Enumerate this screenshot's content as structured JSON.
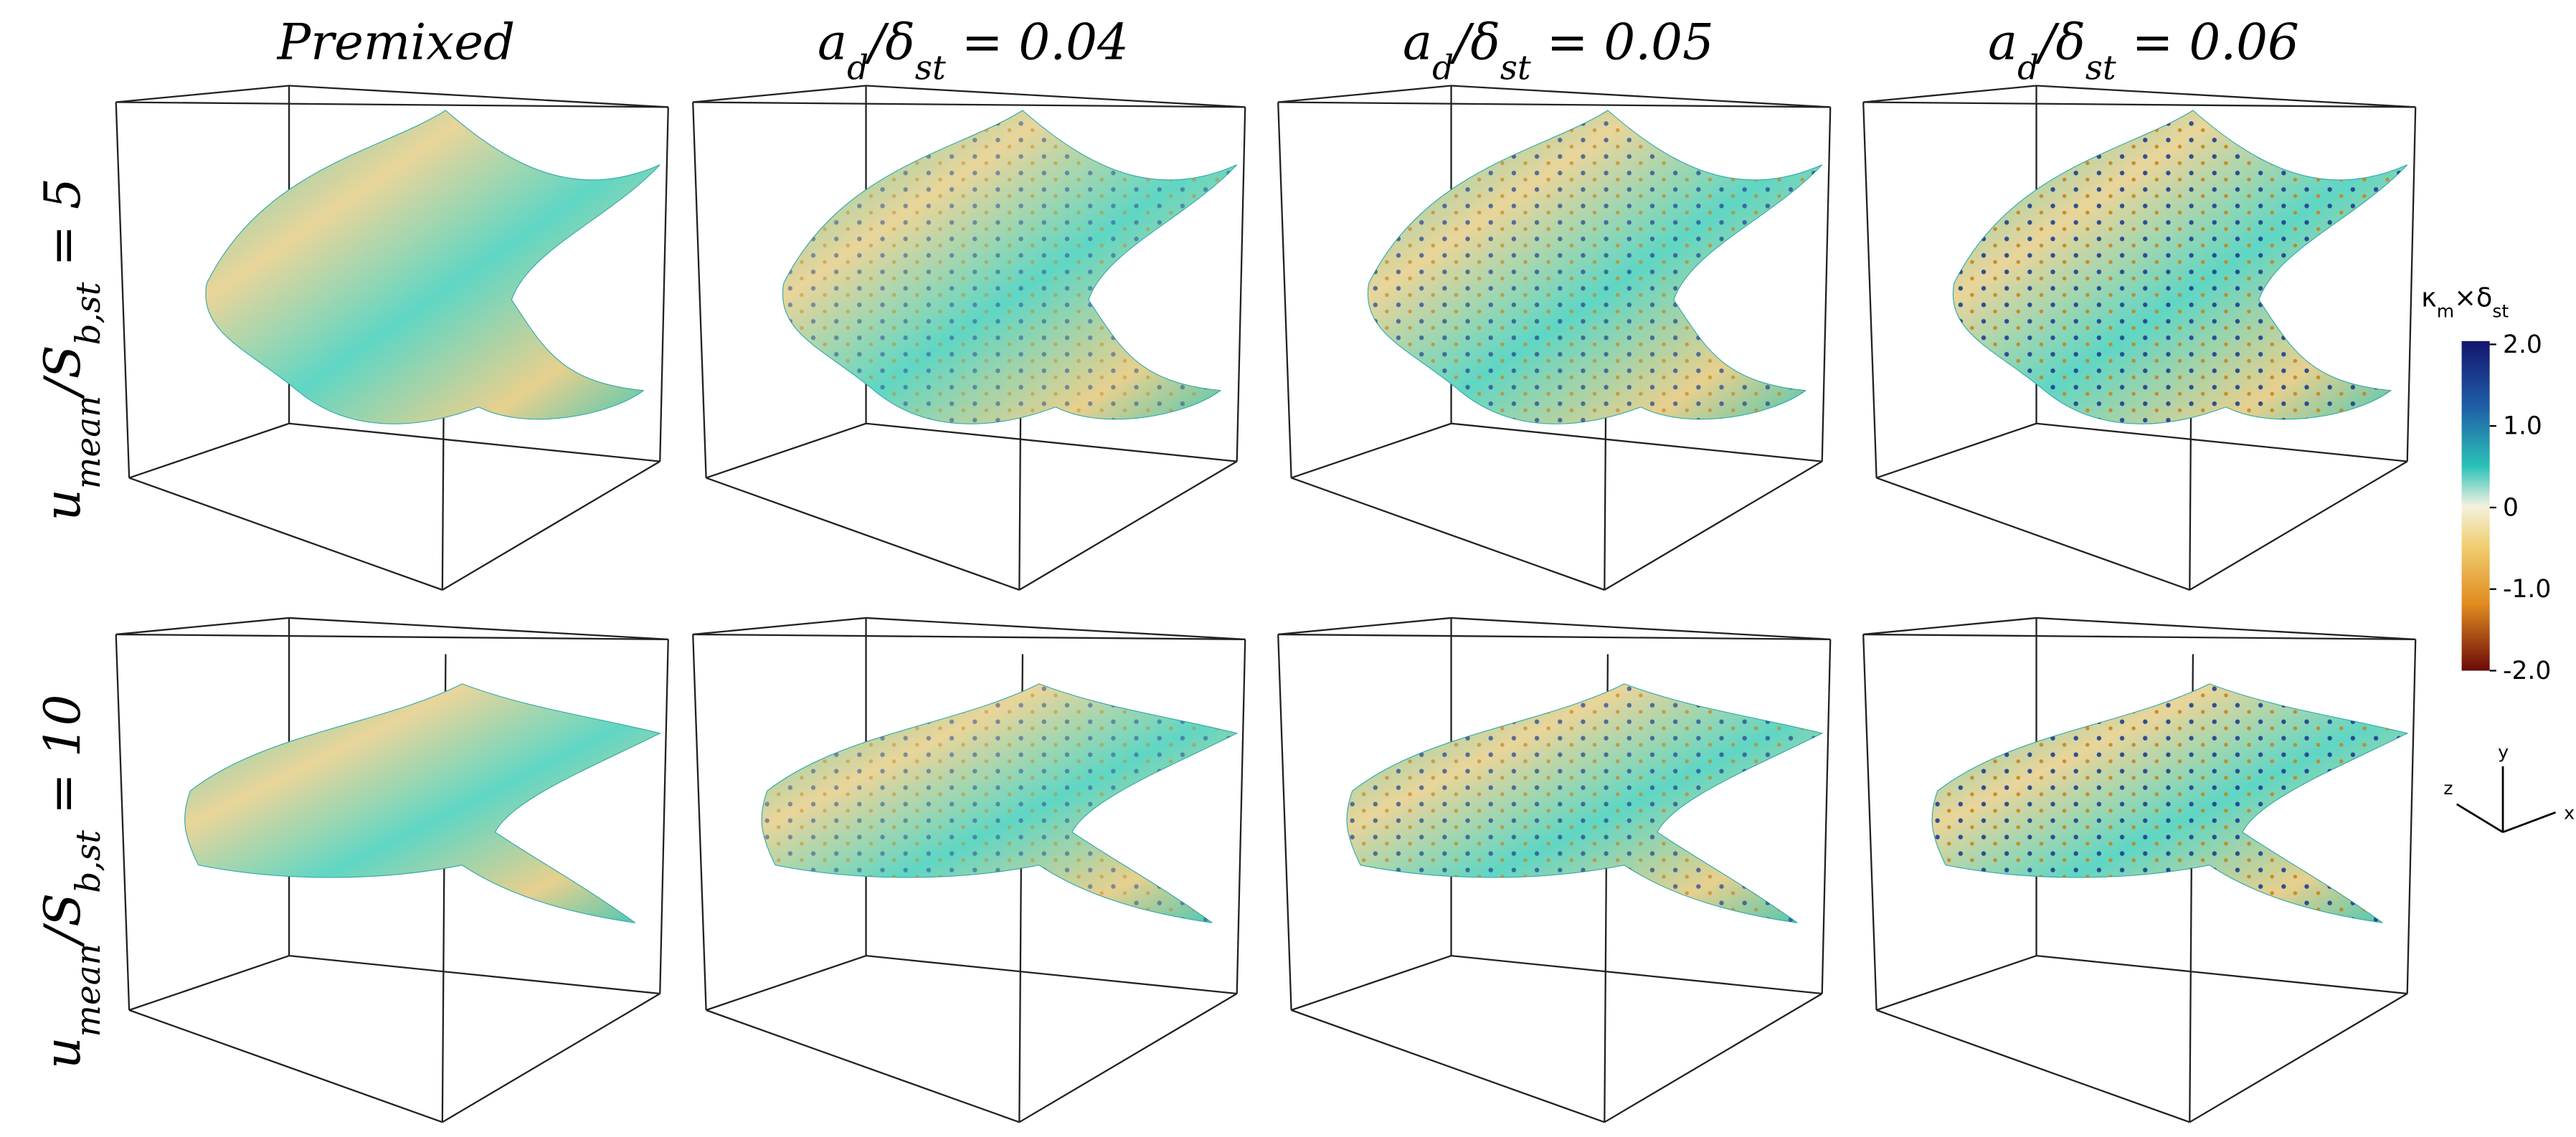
{
  "column_titles": [
    [
      {
        "text": "Premixed"
      }
    ],
    [
      {
        "text": "a"
      },
      {
        "sub": "d"
      },
      {
        "text": "/δ"
      },
      {
        "sub": "st"
      },
      {
        "text": " = 0.04"
      }
    ],
    [
      {
        "text": "a"
      },
      {
        "sub": "d"
      },
      {
        "text": "/δ"
      },
      {
        "sub": "st"
      },
      {
        "text": " = 0.05"
      }
    ],
    [
      {
        "text": "a"
      },
      {
        "sub": "d"
      },
      {
        "text": "/δ"
      },
      {
        "sub": "st"
      },
      {
        "text": " = 0.06"
      }
    ]
  ],
  "row_labels": [
    [
      {
        "text": "u"
      },
      {
        "sub": "mean"
      },
      {
        "text": "/S"
      },
      {
        "sub": "b,st"
      },
      {
        "text": " = 5"
      }
    ],
    [
      {
        "text": "u"
      },
      {
        "sub": "mean"
      },
      {
        "text": "/S"
      },
      {
        "sub": "b,st"
      },
      {
        "text": " = 10"
      }
    ]
  ],
  "colorbar": {
    "title": [
      {
        "text": "κ"
      },
      {
        "sub": "m"
      },
      {
        "text": "×δ"
      },
      {
        "sub": "st"
      }
    ],
    "ticks": [
      "2.0",
      "1.0",
      "0",
      "-1.0",
      "-2.0"
    ]
  },
  "axes_triad": {
    "x": "x",
    "y": "y",
    "z": "z"
  }
}
